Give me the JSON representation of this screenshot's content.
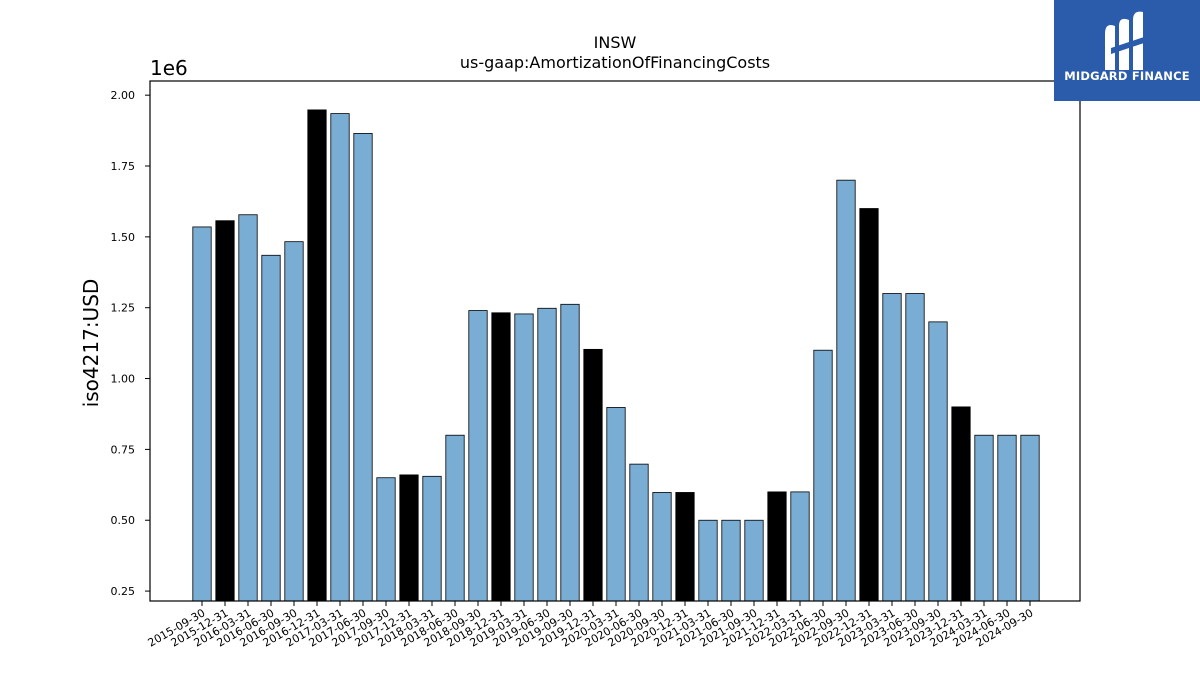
{
  "chart_data": {
    "type": "bar",
    "title": "INSW",
    "subtitle": "us-gaap:AmortizationOfFinancingCosts",
    "ylabel": "iso4217:USD",
    "xlabel": "",
    "y_offset_label": "1e6",
    "ylim": [
      215000,
      2050000
    ],
    "yticks": [
      250000,
      500000,
      750000,
      1000000,
      1250000,
      1500000,
      1750000,
      2000000
    ],
    "ytick_labels": [
      "0.25",
      "0.50",
      "0.75",
      "1.00",
      "1.25",
      "1.50",
      "1.75",
      "2.00"
    ],
    "grid": false,
    "legend": "none",
    "colors": {
      "default_bar": "#7aadd3",
      "fiscal_year_end_bar": "#000000",
      "bar_edge": "#000000"
    },
    "categories": [
      "2015-09-30",
      "2015-12-31",
      "2016-03-31",
      "2016-06-30",
      "2016-09-30",
      "2016-12-31",
      "2017-03-31",
      "2017-06-30",
      "2017-09-30",
      "2017-12-31",
      "2018-03-31",
      "2018-06-30",
      "2018-09-30",
      "2018-12-31",
      "2019-03-31",
      "2019-06-30",
      "2019-09-30",
      "2019-12-31",
      "2020-03-31",
      "2020-06-30",
      "2020-09-30",
      "2020-12-31",
      "2021-03-31",
      "2021-06-30",
      "2021-09-30",
      "2021-12-31",
      "2022-03-31",
      "2022-06-30",
      "2022-09-30",
      "2022-12-31",
      "2023-03-31",
      "2023-06-30",
      "2023-09-30",
      "2023-12-31",
      "2024-03-31",
      "2024-06-30",
      "2024-09-30"
    ],
    "values": [
      1535000,
      1557000,
      1578000,
      1435000,
      1483000,
      1948000,
      1935000,
      1865000,
      650000,
      660000,
      655000,
      800000,
      1240000,
      1232000,
      1228000,
      1248000,
      1262000,
      1103000,
      898000,
      698000,
      598000,
      598000,
      500000,
      500000,
      500000,
      600000,
      600000,
      1100000,
      1700000,
      1600000,
      1300000,
      1300000,
      1200000,
      900000,
      800000,
      800000,
      800000
    ],
    "highlighted": [
      false,
      true,
      false,
      false,
      false,
      true,
      false,
      false,
      false,
      true,
      false,
      false,
      false,
      true,
      false,
      false,
      false,
      true,
      false,
      false,
      false,
      true,
      false,
      false,
      false,
      true,
      false,
      false,
      false,
      true,
      false,
      false,
      false,
      true,
      false,
      false,
      false
    ]
  },
  "logo": {
    "text": "MIDGARD FINANCE",
    "background": "#2b5bab"
  }
}
